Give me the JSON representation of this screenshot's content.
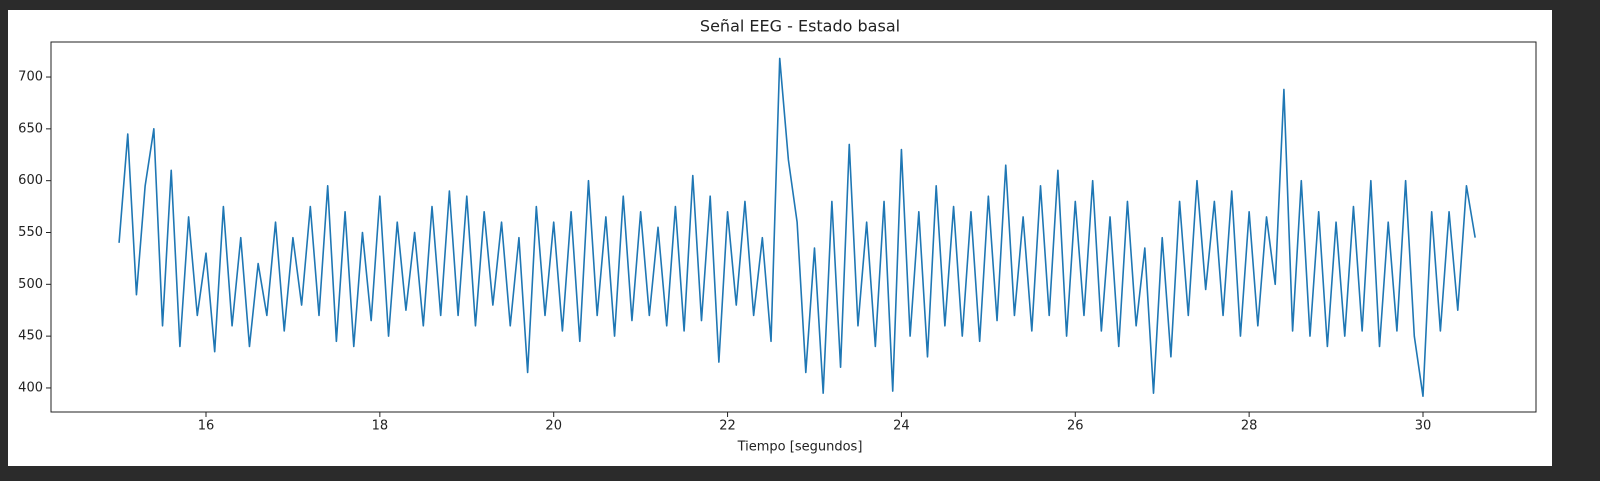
{
  "chart_data": {
    "type": "line",
    "title": "Señal EEG - Estado basal",
    "x_label": "Tiempo [segundos]",
    "x": [
      15.0,
      15.1,
      15.2,
      15.3,
      15.4,
      15.5,
      15.6,
      15.7,
      15.8,
      15.9,
      16.0,
      16.1,
      16.2,
      16.3,
      16.4,
      16.5,
      16.6,
      16.7,
      16.8,
      16.9,
      17.0,
      17.1,
      17.2,
      17.3,
      17.4,
      17.5,
      17.6,
      17.7,
      17.8,
      17.9,
      18.0,
      18.1,
      18.2,
      18.3,
      18.4,
      18.5,
      18.6,
      18.7,
      18.8,
      18.9,
      19.0,
      19.1,
      19.2,
      19.3,
      19.4,
      19.5,
      19.6,
      19.7,
      19.8,
      19.9,
      20.0,
      20.1,
      20.2,
      20.3,
      20.4,
      20.5,
      20.6,
      20.7,
      20.8,
      20.9,
      21.0,
      21.1,
      21.2,
      21.3,
      21.4,
      21.5,
      21.6,
      21.7,
      21.8,
      21.9,
      22.0,
      22.1,
      22.2,
      22.3,
      22.4,
      22.5,
      22.6,
      22.7,
      22.8,
      22.9,
      23.0,
      23.1,
      23.2,
      23.3,
      23.4,
      23.5,
      23.6,
      23.7,
      23.8,
      23.9,
      24.0,
      24.1,
      24.2,
      24.3,
      24.4,
      24.5,
      24.6,
      24.7,
      24.8,
      24.9,
      25.0,
      25.1,
      25.2,
      25.3,
      25.4,
      25.5,
      25.6,
      25.7,
      25.8,
      25.9,
      26.0,
      26.1,
      26.2,
      26.3,
      26.4,
      26.5,
      26.6,
      26.7,
      26.8,
      26.9,
      27.0,
      27.1,
      27.2,
      27.3,
      27.4,
      27.5,
      27.6,
      27.7,
      27.8,
      27.9,
      28.0,
      28.1,
      28.2,
      28.3,
      28.4,
      28.5,
      28.6,
      28.7,
      28.8,
      28.9,
      29.0,
      29.1,
      29.2,
      29.3,
      29.4,
      29.5,
      29.6,
      29.7,
      29.8,
      29.9,
      30.0,
      30.1,
      30.2,
      30.3,
      30.4,
      30.5,
      30.6
    ],
    "values": [
      540,
      645,
      490,
      595,
      650,
      460,
      610,
      440,
      565,
      470,
      530,
      435,
      575,
      460,
      545,
      440,
      520,
      470,
      560,
      455,
      545,
      480,
      575,
      470,
      595,
      445,
      570,
      440,
      550,
      465,
      585,
      450,
      560,
      475,
      550,
      460,
      575,
      470,
      590,
      470,
      585,
      460,
      570,
      480,
      560,
      460,
      545,
      415,
      575,
      470,
      560,
      455,
      570,
      445,
      600,
      470,
      565,
      450,
      585,
      465,
      570,
      470,
      555,
      460,
      575,
      455,
      605,
      465,
      585,
      425,
      570,
      480,
      580,
      470,
      545,
      445,
      718,
      620,
      560,
      415,
      535,
      395,
      580,
      420,
      635,
      460,
      560,
      440,
      580,
      397,
      630,
      450,
      570,
      430,
      595,
      460,
      575,
      450,
      570,
      445,
      585,
      465,
      615,
      470,
      565,
      455,
      595,
      470,
      610,
      450,
      580,
      470,
      600,
      455,
      565,
      440,
      580,
      460,
      535,
      395,
      545,
      430,
      580,
      470,
      600,
      495,
      580,
      470,
      590,
      450,
      570,
      460,
      565,
      500,
      688,
      455,
      600,
      450,
      570,
      440,
      560,
      450,
      575,
      455,
      600,
      440,
      560,
      455,
      600,
      450,
      392,
      570,
      455,
      570,
      475,
      595,
      545
    ],
    "color": "#1f77b4",
    "xlim": [
      14.217,
      31.3
    ],
    "xticks": [
      16,
      18,
      20,
      22,
      24,
      26,
      28,
      30
    ],
    "ylim": [
      376.8,
      733.8
    ],
    "yticks": [
      400,
      450,
      500,
      550,
      600,
      650,
      700
    ]
  }
}
